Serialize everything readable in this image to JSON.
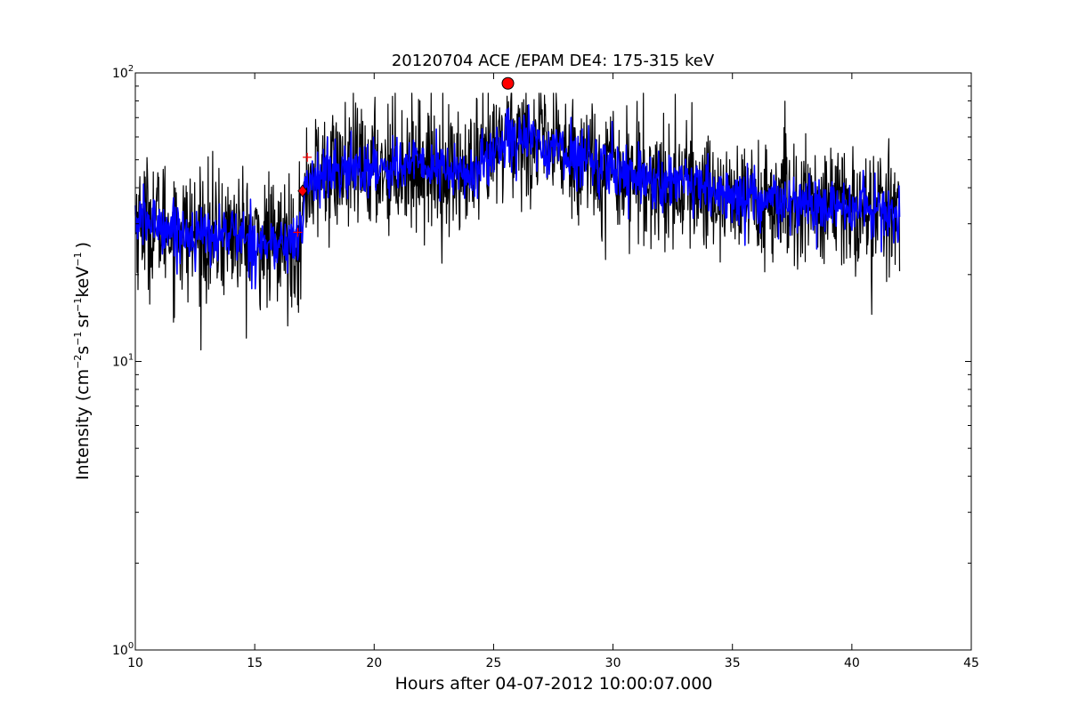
{
  "chart_data": {
    "type": "line",
    "title": "20120704 ACE /EPAM DE4: 175-315 keV",
    "xlabel": "Hours after 04-07-2012 10:00:07.000",
    "ylabel": {
      "prefix": "Intensity (cm",
      "sup1": "−2",
      "mid1": "s",
      "sup2": "−1",
      "mid2": "sr",
      "sup3": "−1",
      "mid3": "keV",
      "sup4": "−1",
      "suffix": ")"
    },
    "xlim": [
      10,
      45
    ],
    "ylim": [
      1,
      100
    ],
    "yscale": "log",
    "grid": false,
    "x_ticks": [
      10,
      15,
      20,
      25,
      30,
      35,
      40,
      45
    ],
    "x_tick_labels": [
      "10",
      "15",
      "20",
      "25",
      "30",
      "35",
      "40",
      "45"
    ],
    "y_ticks": [
      {
        "value": 1,
        "base": "10",
        "exp": "0"
      },
      {
        "value": 10,
        "base": "10",
        "exp": "1"
      },
      {
        "value": 100,
        "base": "10",
        "exp": "2"
      }
    ],
    "series": [
      {
        "style": "raw-black",
        "color": "#000000",
        "x_range": [
          10.0,
          42.0
        ],
        "profile_x": [
          10,
          11,
          12,
          13,
          14,
          15,
          16,
          16.9,
          17.2,
          18,
          19,
          20,
          21,
          22,
          23,
          24,
          25,
          25.6,
          26,
          27,
          28,
          29,
          30,
          31,
          32,
          33,
          34,
          35,
          36,
          37,
          38,
          39,
          40,
          41,
          42
        ],
        "profile_y": [
          31,
          30,
          28,
          27,
          28,
          26,
          25,
          27,
          42,
          45,
          46,
          47,
          48,
          48,
          46,
          44,
          52,
          63,
          60,
          56,
          53,
          50,
          47,
          44,
          42,
          40,
          39,
          37,
          36,
          35,
          35,
          34,
          34,
          33,
          33
        ],
        "noise_factor": 1.45,
        "min_value": 8.7,
        "max_value": 85
      },
      {
        "style": "smoothed-blue",
        "color": "#0000ff",
        "x_range": [
          10.0,
          42.0
        ],
        "profile_x": [
          10,
          11,
          12,
          13,
          14,
          15,
          16,
          16.9,
          17.2,
          18,
          19,
          20,
          21,
          22,
          23,
          24,
          25,
          25.6,
          26,
          27,
          28,
          29,
          30,
          31,
          32,
          33,
          34,
          35,
          36,
          37,
          38,
          39,
          40,
          41,
          42
        ],
        "profile_y": [
          31,
          30,
          28,
          27,
          28,
          26,
          25,
          27,
          42,
          45,
          46,
          47,
          48,
          48,
          46,
          44,
          52,
          63,
          60,
          56,
          53,
          50,
          47,
          44,
          42,
          40,
          39,
          37,
          36,
          35,
          35,
          34,
          34,
          33,
          33
        ],
        "noise_factor": 1.18
      }
    ],
    "markers": [
      {
        "shape": "circle",
        "x": 25.6,
        "y": 92,
        "color": "#ff0000"
      },
      {
        "shape": "diamond",
        "x": 17.0,
        "y": 39,
        "color": "#ff0000"
      },
      {
        "shape": "plus",
        "x": 17.2,
        "y": 51,
        "color": "#ff0000"
      },
      {
        "shape": "plus",
        "x": 16.8,
        "y": 28,
        "color": "#ff0000"
      }
    ]
  }
}
